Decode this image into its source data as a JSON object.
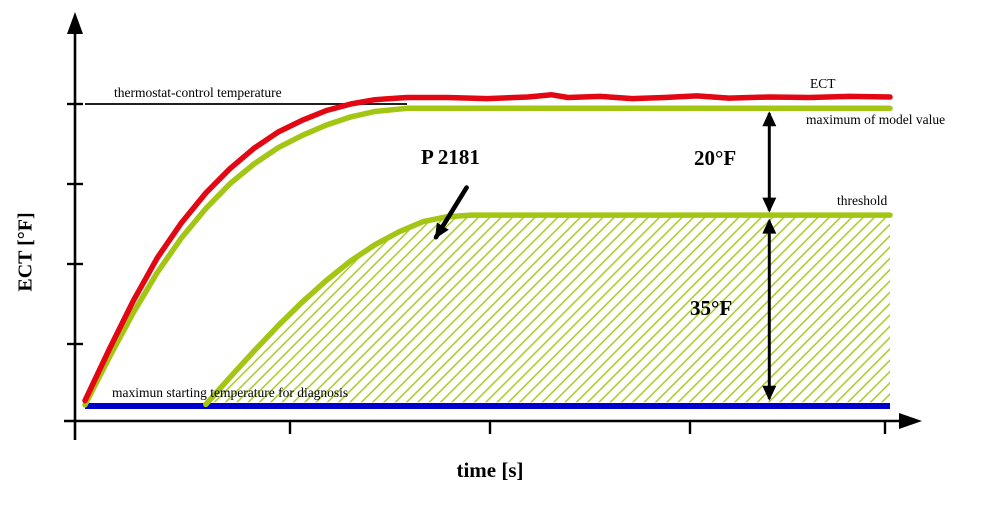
{
  "chart_data": {
    "type": "line",
    "title": "",
    "xlabel": "time [s]",
    "ylabel": "ECT [°F]",
    "x_axis_numeric_labels": false,
    "y_axis_numeric_labels": false,
    "x_range_s": [
      0,
      100
    ],
    "y_relative_range_f": [
      0,
      62
    ],
    "series": [
      {
        "key": "ect",
        "name": "ECT",
        "color": "#e30613",
        "points": [
          [
            0,
            1
          ],
          [
            3,
            10.5
          ],
          [
            6,
            19.5
          ],
          [
            9,
            27.5
          ],
          [
            12,
            34
          ],
          [
            15,
            39.5
          ],
          [
            18,
            44
          ],
          [
            21,
            47.8
          ],
          [
            24,
            50.8
          ],
          [
            27,
            53
          ],
          [
            30,
            54.8
          ],
          [
            33,
            56
          ],
          [
            36,
            56.8
          ],
          [
            40,
            57.2
          ],
          [
            45,
            57.2
          ],
          [
            50,
            57
          ],
          [
            55,
            57.3
          ],
          [
            58,
            57.7
          ],
          [
            60,
            57.2
          ],
          [
            64,
            57.4
          ],
          [
            68,
            57
          ],
          [
            72,
            57.2
          ],
          [
            76,
            57.5
          ],
          [
            80,
            57.1
          ],
          [
            85,
            57.3
          ],
          [
            90,
            57.2
          ],
          [
            95,
            57.4
          ],
          [
            100,
            57.3
          ]
        ]
      },
      {
        "key": "model-max",
        "name": "maximum of model value",
        "color": "#a2c613",
        "points": [
          [
            0,
            0.2
          ],
          [
            3,
            9
          ],
          [
            6,
            17.3
          ],
          [
            9,
            24.8
          ],
          [
            12,
            31.2
          ],
          [
            15,
            36.6
          ],
          [
            18,
            41.2
          ],
          [
            21,
            44.9
          ],
          [
            24,
            47.9
          ],
          [
            27,
            50.2
          ],
          [
            30,
            52.1
          ],
          [
            33,
            53.6
          ],
          [
            36,
            54.6
          ],
          [
            40,
            55.2
          ],
          [
            50,
            55.2
          ],
          [
            100,
            55.2
          ]
        ]
      },
      {
        "key": "threshold",
        "name": "threshold",
        "color": "#a2c613",
        "hatched_area_below": true,
        "points": [
          [
            15,
            0.3
          ],
          [
            18,
            5.3
          ],
          [
            21,
            10.2
          ],
          [
            24,
            14.9
          ],
          [
            27,
            19.3
          ],
          [
            30,
            23.3
          ],
          [
            33,
            26.9
          ],
          [
            36,
            29.9
          ],
          [
            39,
            32.3
          ],
          [
            42,
            34.2
          ],
          [
            45,
            35.1
          ],
          [
            48,
            35.4
          ],
          [
            100,
            35.4
          ]
        ]
      }
    ],
    "reference_lines": [
      {
        "key": "thermostat",
        "name": "thermostat-control temperature",
        "color": "#000000",
        "value": 56,
        "t_range": [
          0,
          40
        ]
      },
      {
        "key": "diagnosis-start",
        "name": "maximun starting temperature for diagnosis",
        "color": "#0000cc",
        "value": 0,
        "t_range": [
          0,
          100
        ]
      }
    ],
    "annotations": [
      {
        "key": "p2181",
        "type": "pointer",
        "label": "P 2181",
        "from": [
          47.4,
          40.5
        ],
        "to": [
          43.6,
          31.3
        ]
      },
      {
        "key": "delta-upper",
        "type": "span",
        "label": "20°F",
        "delta_f": 20,
        "at_time": 85,
        "from": 35.3,
        "to": 55.2
      },
      {
        "key": "delta-lower",
        "type": "span",
        "label": "35°F",
        "delta_f": 35,
        "at_time": 85,
        "from": 0.4,
        "to": 35.3
      }
    ]
  }
}
